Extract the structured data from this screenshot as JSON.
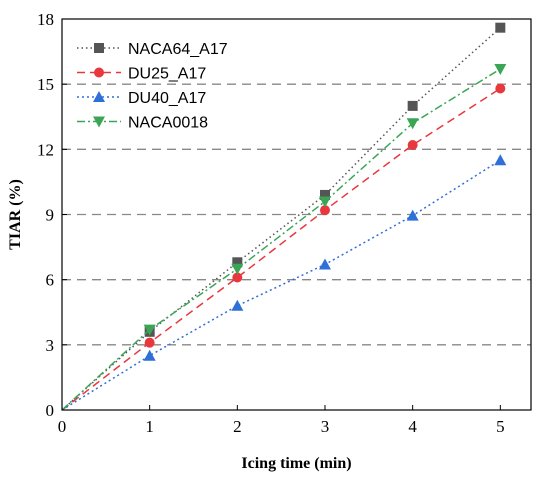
{
  "chart_data": {
    "type": "line",
    "xlabel": "Icing time (min)",
    "ylabel": "TIAR (%)",
    "xlim": [
      0,
      5.35
    ],
    "ylim": [
      0,
      18
    ],
    "xticks": [
      0,
      1,
      2,
      3,
      4,
      5
    ],
    "yticks": [
      0,
      3,
      6,
      9,
      12,
      15,
      18
    ],
    "grid": "horizontal-dashed",
    "legend_position": "top-left",
    "x": [
      0,
      1,
      2,
      3,
      4,
      5
    ],
    "series": [
      {
        "name": "NACA64_A17",
        "values": [
          0,
          3.6,
          6.8,
          9.9,
          14.0,
          17.6
        ],
        "color": "#555555",
        "marker": "square",
        "dash": "dotted"
      },
      {
        "name": "DU25_A17",
        "values": [
          0,
          3.1,
          6.1,
          9.2,
          12.2,
          14.8
        ],
        "color": "#e8383d",
        "marker": "circle",
        "dash": "dashed"
      },
      {
        "name": "DU40_A17",
        "values": [
          0,
          2.5,
          4.8,
          6.7,
          8.95,
          11.5
        ],
        "color": "#2e6fd8",
        "marker": "triangle-up",
        "dash": "dash-dot-dot"
      },
      {
        "name": "NACA0018",
        "values": [
          0,
          3.7,
          6.5,
          9.6,
          13.2,
          15.7
        ],
        "color": "#3aa655",
        "marker": "triangle-down",
        "dash": "dash-dot"
      }
    ]
  }
}
